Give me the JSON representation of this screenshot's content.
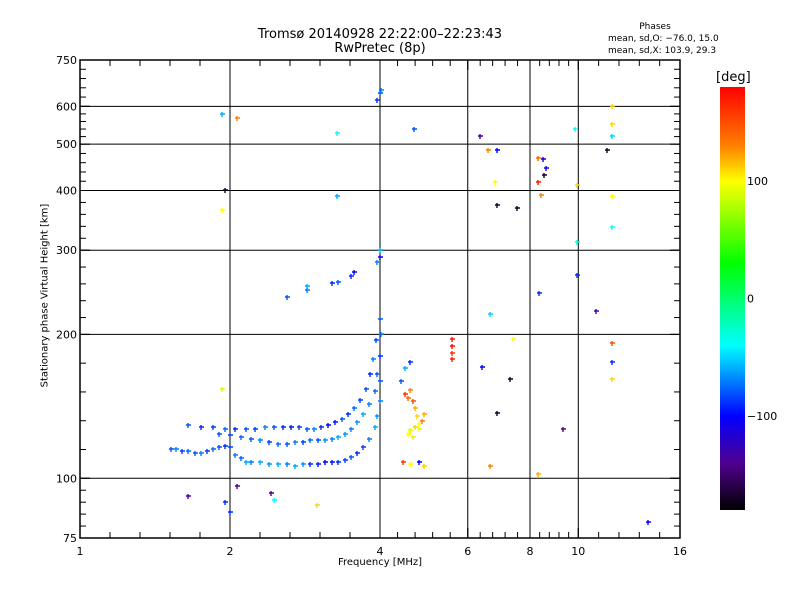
{
  "chart_data": {
    "type": "scatter",
    "title": "Tromsø 20140928 22:22:00–22:23:43",
    "subtitle": "RwPretec (8p)",
    "phase_stats": {
      "heading": "Phases",
      "o_mode": "mean, sd,O: −76.0, 15.0",
      "x_mode": "mean, sd,X: 103.9, 29.3"
    },
    "xlabel": "Frequency [MHz]",
    "ylabel": "Stationary phase Virtual Height [km]",
    "xscale": "log",
    "yscale": "log",
    "xlim": [
      1,
      16
    ],
    "ylim": [
      75,
      750
    ],
    "xticks": [
      1,
      2,
      4,
      6,
      8,
      10,
      16
    ],
    "xgrid": [
      2,
      4,
      6,
      8,
      10
    ],
    "yticks": [
      75,
      100,
      200,
      300,
      400,
      500,
      600,
      750
    ],
    "ygrid": [
      100,
      200,
      300,
      400,
      500,
      600
    ],
    "colorbar": {
      "label": "[deg]",
      "range": [
        -180,
        180
      ],
      "ticks": [
        100,
        0,
        -100
      ],
      "tick_labels": [
        "100",
        "0",
        "−100"
      ],
      "stops": [
        {
          "v": 180,
          "c": "#ff0000"
        },
        {
          "v": 130,
          "c": "#ff8000"
        },
        {
          "v": 100,
          "c": "#ffff00"
        },
        {
          "v": 30,
          "c": "#00ff00"
        },
        {
          "v": -40,
          "c": "#00ffff"
        },
        {
          "v": -100,
          "c": "#0000ff"
        },
        {
          "v": -140,
          "c": "#500090"
        },
        {
          "v": -180,
          "c": "#000000"
        }
      ]
    },
    "point_fields": [
      "frequency_mhz",
      "height_km",
      "phase_deg"
    ],
    "points": [
      [
        1.52,
        115,
        -80
      ],
      [
        1.56,
        115,
        -70
      ],
      [
        1.6,
        114,
        -85
      ],
      [
        1.65,
        114,
        -75
      ],
      [
        1.7,
        113,
        -80
      ],
      [
        1.75,
        113,
        -70
      ],
      [
        1.8,
        114,
        -85
      ],
      [
        1.85,
        115,
        -75
      ],
      [
        1.9,
        116,
        -80
      ],
      [
        1.95,
        117,
        -90
      ],
      [
        2.0,
        116,
        -85
      ],
      [
        2.05,
        112,
        -70
      ],
      [
        2.1,
        110,
        -75
      ],
      [
        2.15,
        108,
        -60
      ],
      [
        2.2,
        108,
        -70
      ],
      [
        2.3,
        108,
        -60
      ],
      [
        2.4,
        107,
        -65
      ],
      [
        2.5,
        107,
        -60
      ],
      [
        2.6,
        107,
        -70
      ],
      [
        2.7,
        106,
        -60
      ],
      [
        2.8,
        107,
        -65
      ],
      [
        2.9,
        107,
        -90
      ],
      [
        3.0,
        107,
        -95
      ],
      [
        3.1,
        108,
        -100
      ],
      [
        3.2,
        108,
        -95
      ],
      [
        3.3,
        108,
        -90
      ],
      [
        3.4,
        109,
        -85
      ],
      [
        3.5,
        111,
        -80
      ],
      [
        3.6,
        113,
        -90
      ],
      [
        3.7,
        116,
        -85
      ],
      [
        3.8,
        121,
        -70
      ],
      [
        3.9,
        128,
        -60
      ],
      [
        3.95,
        135,
        -65
      ],
      [
        4.0,
        145,
        -70
      ],
      [
        4.0,
        160,
        -80
      ],
      [
        4.0,
        180,
        -90
      ],
      [
        4.02,
        200,
        -70
      ],
      [
        4.0,
        215,
        -80
      ],
      [
        1.9,
        124,
        -80
      ],
      [
        2.0,
        123,
        -85
      ],
      [
        2.1,
        122,
        -75
      ],
      [
        2.2,
        121,
        -80
      ],
      [
        2.3,
        120,
        -70
      ],
      [
        2.4,
        119,
        -85
      ],
      [
        2.5,
        118,
        -75
      ],
      [
        2.6,
        118,
        -80
      ],
      [
        2.7,
        119,
        -70
      ],
      [
        2.8,
        119,
        -85
      ],
      [
        2.9,
        120,
        -75
      ],
      [
        3.0,
        120,
        -80
      ],
      [
        3.1,
        120,
        -65
      ],
      [
        3.2,
        121,
        -70
      ],
      [
        3.3,
        122,
        -60
      ],
      [
        3.4,
        124,
        -65
      ],
      [
        3.5,
        127,
        -70
      ],
      [
        3.6,
        131,
        -65
      ],
      [
        3.7,
        136,
        -60
      ],
      [
        3.8,
        143,
        -70
      ],
      [
        3.9,
        152,
        -75
      ],
      [
        3.95,
        165,
        -80
      ],
      [
        1.65,
        129,
        -80
      ],
      [
        1.75,
        128,
        -90
      ],
      [
        1.85,
        128,
        -85
      ],
      [
        1.95,
        127,
        -75
      ],
      [
        2.05,
        127,
        -90
      ],
      [
        2.15,
        127,
        -80
      ],
      [
        2.25,
        127,
        -85
      ],
      [
        2.35,
        128,
        -70
      ],
      [
        2.45,
        128,
        -80
      ],
      [
        2.55,
        128,
        -90
      ],
      [
        2.65,
        128,
        -95
      ],
      [
        2.75,
        128,
        -85
      ],
      [
        2.85,
        127,
        -80
      ],
      [
        2.95,
        127,
        -70
      ],
      [
        3.05,
        128,
        -90
      ],
      [
        3.15,
        129,
        -100
      ],
      [
        3.25,
        131,
        -95
      ],
      [
        3.35,
        133,
        -80
      ],
      [
        3.45,
        136,
        -90
      ],
      [
        3.55,
        140,
        -75
      ],
      [
        3.65,
        146,
        -85
      ],
      [
        3.75,
        154,
        -80
      ],
      [
        3.82,
        165,
        -90
      ],
      [
        3.88,
        178,
        -70
      ],
      [
        3.92,
        195,
        -85
      ],
      [
        4.5,
        150,
        160
      ],
      [
        4.55,
        147,
        140
      ],
      [
        4.6,
        153,
        130
      ],
      [
        4.65,
        145,
        150
      ],
      [
        4.7,
        140,
        120
      ],
      [
        4.75,
        135,
        110
      ],
      [
        4.8,
        130,
        100
      ],
      [
        4.7,
        128,
        110
      ],
      [
        4.6,
        126,
        90
      ],
      [
        4.55,
        124,
        100
      ],
      [
        4.65,
        122,
        105
      ],
      [
        4.8,
        127,
        95
      ],
      [
        4.85,
        132,
        130
      ],
      [
        4.9,
        136,
        120
      ],
      [
        4.4,
        160,
        -80
      ],
      [
        4.5,
        170,
        -60
      ],
      [
        4.6,
        175,
        -90
      ],
      [
        4.45,
        108,
        160
      ],
      [
        4.6,
        107,
        100
      ],
      [
        4.9,
        106,
        110
      ],
      [
        4.8,
        108,
        -100
      ],
      [
        2.6,
        240,
        -80
      ],
      [
        2.85,
        252,
        -60
      ],
      [
        2.85,
        248,
        -70
      ],
      [
        3.2,
        256,
        -90
      ],
      [
        3.3,
        258,
        -80
      ],
      [
        3.5,
        265,
        -90
      ],
      [
        3.55,
        270,
        -100
      ],
      [
        3.95,
        283,
        -70
      ],
      [
        4.0,
        290,
        -110
      ],
      [
        4.0,
        300,
        -60
      ],
      [
        3.95,
        620,
        -90
      ],
      [
        4.0,
        640,
        -80
      ],
      [
        4.02,
        650,
        -70
      ],
      [
        1.93,
        578,
        -60
      ],
      [
        2.07,
        568,
        130
      ],
      [
        3.28,
        527,
        -40
      ],
      [
        4.68,
        537,
        -80
      ],
      [
        1.95,
        401,
        -170
      ],
      [
        1.93,
        364,
        100
      ],
      [
        3.28,
        389,
        -60
      ],
      [
        6.35,
        520,
        -130
      ],
      [
        6.6,
        486,
        130
      ],
      [
        6.87,
        486,
        -100
      ],
      [
        6.8,
        417,
        100
      ],
      [
        6.87,
        373,
        -170
      ],
      [
        7.55,
        368,
        -170
      ],
      [
        8.3,
        468,
        140
      ],
      [
        8.5,
        465,
        -100
      ],
      [
        8.3,
        417,
        170
      ],
      [
        8.4,
        392,
        130
      ],
      [
        8.6,
        445,
        -110
      ],
      [
        8.55,
        430,
        -170
      ],
      [
        9.85,
        537,
        -40
      ],
      [
        9.95,
        410,
        110
      ],
      [
        9.95,
        312,
        -30
      ],
      [
        9.95,
        266,
        -90
      ],
      [
        11.7,
        600,
        110
      ],
      [
        11.7,
        550,
        110
      ],
      [
        11.7,
        520,
        -50
      ],
      [
        11.4,
        487,
        -170
      ],
      [
        11.7,
        390,
        100
      ],
      [
        11.7,
        336,
        -40
      ],
      [
        10.85,
        224,
        -130
      ],
      [
        11.7,
        192,
        150
      ],
      [
        11.7,
        175,
        -90
      ],
      [
        11.7,
        161,
        110
      ],
      [
        8.35,
        244,
        -90
      ],
      [
        6.65,
        221,
        -50
      ],
      [
        5.58,
        196,
        170
      ],
      [
        5.58,
        189,
        175
      ],
      [
        5.58,
        183,
        160
      ],
      [
        5.58,
        178,
        170
      ],
      [
        7.4,
        196,
        100
      ],
      [
        6.4,
        171,
        -100
      ],
      [
        7.3,
        161,
        -170
      ],
      [
        6.87,
        137,
        -170
      ],
      [
        9.3,
        127,
        -140
      ],
      [
        6.65,
        106,
        130
      ],
      [
        8.3,
        102,
        120
      ],
      [
        1.65,
        92,
        -130
      ],
      [
        1.95,
        89,
        -90
      ],
      [
        2.0,
        85,
        -90
      ],
      [
        2.07,
        96.5,
        -140
      ],
      [
        2.42,
        93,
        -140
      ],
      [
        2.45,
        90,
        -40
      ],
      [
        2.99,
        88,
        110
      ],
      [
        13.8,
        81,
        -100
      ],
      [
        1.93,
        154,
        90
      ]
    ]
  }
}
